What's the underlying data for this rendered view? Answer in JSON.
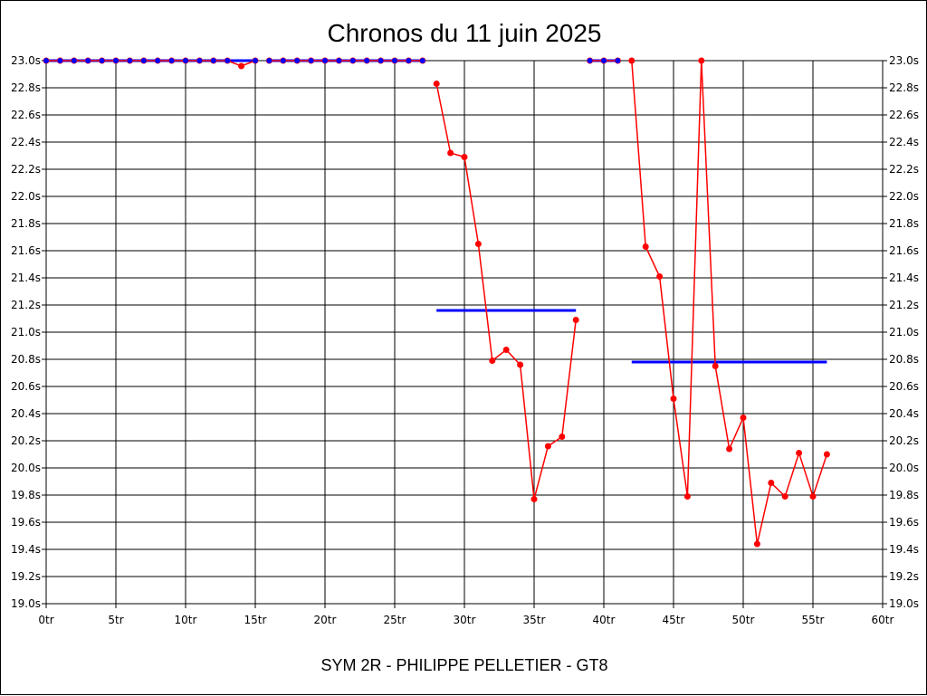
{
  "chart_data": {
    "type": "line",
    "title": "Chronos du 11 juin 2025",
    "subtitle": "SYM 2R - PHILIPPE PELLETIER - GT8",
    "xlim": [
      0,
      60
    ],
    "ylim": [
      19.0,
      23.0
    ],
    "x_ticks": [
      0,
      5,
      10,
      15,
      20,
      25,
      30,
      35,
      40,
      45,
      50,
      55,
      60
    ],
    "x_tick_labels": [
      "0tr",
      "5tr",
      "10tr",
      "15tr",
      "20tr",
      "25tr",
      "30tr",
      "35tr",
      "40tr",
      "45tr",
      "50tr",
      "55tr",
      "60tr"
    ],
    "y_ticks": [
      19.0,
      19.2,
      19.4,
      19.6,
      19.8,
      20.0,
      20.2,
      20.4,
      20.6,
      20.8,
      21.0,
      21.2,
      21.4,
      21.6,
      21.8,
      22.0,
      22.2,
      22.4,
      22.6,
      22.8,
      23.0
    ],
    "y_tick_labels": [
      "19.0s",
      "19.2s",
      "19.4s",
      "19.6s",
      "19.8s",
      "20.0s",
      "20.2s",
      "20.4s",
      "20.6s",
      "20.8s",
      "21.0s",
      "21.2s",
      "21.4s",
      "21.6s",
      "21.8s",
      "22.0s",
      "22.2s",
      "22.4s",
      "22.6s",
      "22.8s",
      "23.0s"
    ],
    "grid": true,
    "colors": {
      "laps": "#ff0000",
      "average": "#0000ff",
      "frame": "#000000"
    },
    "lap_segments": [
      {
        "x": [
          0,
          1,
          2,
          3,
          4,
          5,
          6,
          7,
          8,
          9,
          10,
          11,
          12,
          13,
          14,
          15
        ],
        "y": [
          23.0,
          23.0,
          23.0,
          23.0,
          23.0,
          23.0,
          23.0,
          23.0,
          23.0,
          23.0,
          23.0,
          23.0,
          23.0,
          23.0,
          22.96,
          23.0
        ]
      },
      {
        "x": [
          16,
          17,
          18,
          19,
          20,
          21,
          22,
          23,
          24,
          25,
          26,
          27
        ],
        "y": [
          23.0,
          23.0,
          23.0,
          23.0,
          23.0,
          23.0,
          23.0,
          23.0,
          23.0,
          23.0,
          23.0,
          23.0
        ]
      },
      {
        "x": [
          28,
          29,
          30,
          31,
          32,
          33,
          34,
          35,
          36,
          37,
          38
        ],
        "y": [
          22.83,
          22.32,
          22.29,
          21.65,
          20.79,
          20.87,
          20.76,
          19.77,
          20.16,
          20.23,
          21.09
        ]
      },
      {
        "x": [
          39,
          40,
          41
        ],
        "y": [
          23.0,
          23.0,
          23.0
        ]
      },
      {
        "x": [
          42,
          43,
          44,
          45,
          46,
          47,
          48,
          49,
          50,
          51,
          52,
          53,
          54,
          55,
          56
        ],
        "y": [
          23.0,
          21.63,
          21.41,
          20.51,
          19.79,
          23.0,
          20.75,
          20.14,
          20.37,
          19.44,
          19.89,
          19.79,
          20.11,
          19.79,
          20.1
        ]
      }
    ],
    "average_segments": [
      {
        "x": [
          0,
          15
        ],
        "y": [
          23.0,
          23.0
        ]
      },
      {
        "x": [
          16,
          27
        ],
        "y": [
          23.0,
          23.0
        ]
      },
      {
        "x": [
          28,
          38
        ],
        "y": [
          21.16,
          21.16
        ]
      },
      {
        "x": [
          39,
          41
        ],
        "y": [
          23.0,
          23.0
        ]
      },
      {
        "x": [
          42,
          56
        ],
        "y": [
          20.78,
          20.78
        ]
      }
    ],
    "blue_markers": [
      {
        "x": [
          0,
          1,
          2,
          3,
          4,
          5,
          6,
          7,
          8,
          9,
          10,
          11,
          12,
          13,
          15
        ],
        "y": 23.0
      },
      {
        "x": [
          16,
          17,
          18,
          19,
          20,
          21,
          22,
          23,
          24,
          25,
          26,
          27
        ],
        "y": 23.0
      },
      {
        "x": [
          39,
          40,
          41
        ],
        "y": 23.0
      }
    ]
  }
}
